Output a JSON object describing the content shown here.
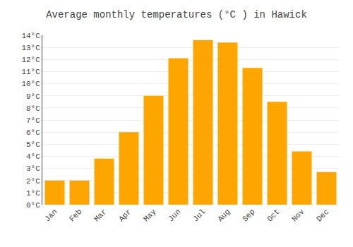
{
  "chart_data": {
    "type": "bar",
    "title": "Average monthly temperatures (°C ) in Hawick",
    "categories": [
      "Jan",
      "Feb",
      "Mar",
      "Apr",
      "May",
      "Jun",
      "Jul",
      "Aug",
      "Sep",
      "Oct",
      "Nov",
      "Dec"
    ],
    "values": [
      2.0,
      2.0,
      3.8,
      6.0,
      9.0,
      12.1,
      13.6,
      13.4,
      11.3,
      8.5,
      4.4,
      2.7
    ],
    "color": "#FFA500",
    "ylim": [
      0,
      14
    ],
    "yticks": [
      {
        "value": 0,
        "label": "0°C"
      },
      {
        "value": 1,
        "label": "1°C"
      },
      {
        "value": 2,
        "label": "2°C"
      },
      {
        "value": 3,
        "label": "3°C"
      },
      {
        "value": 4,
        "label": "4°C"
      },
      {
        "value": 5,
        "label": "5°C"
      },
      {
        "value": 6,
        "label": "6°C"
      },
      {
        "value": 7,
        "label": "7°C"
      },
      {
        "value": 8,
        "label": "8°C"
      },
      {
        "value": 9,
        "label": "9°C"
      },
      {
        "value": 10,
        "label": "10°C"
      },
      {
        "value": 11,
        "label": "11°C"
      },
      {
        "value": 12,
        "label": "12°C"
      },
      {
        "value": 13,
        "label": "13°C"
      },
      {
        "value": 14,
        "label": "14°C"
      }
    ],
    "grid": true
  }
}
